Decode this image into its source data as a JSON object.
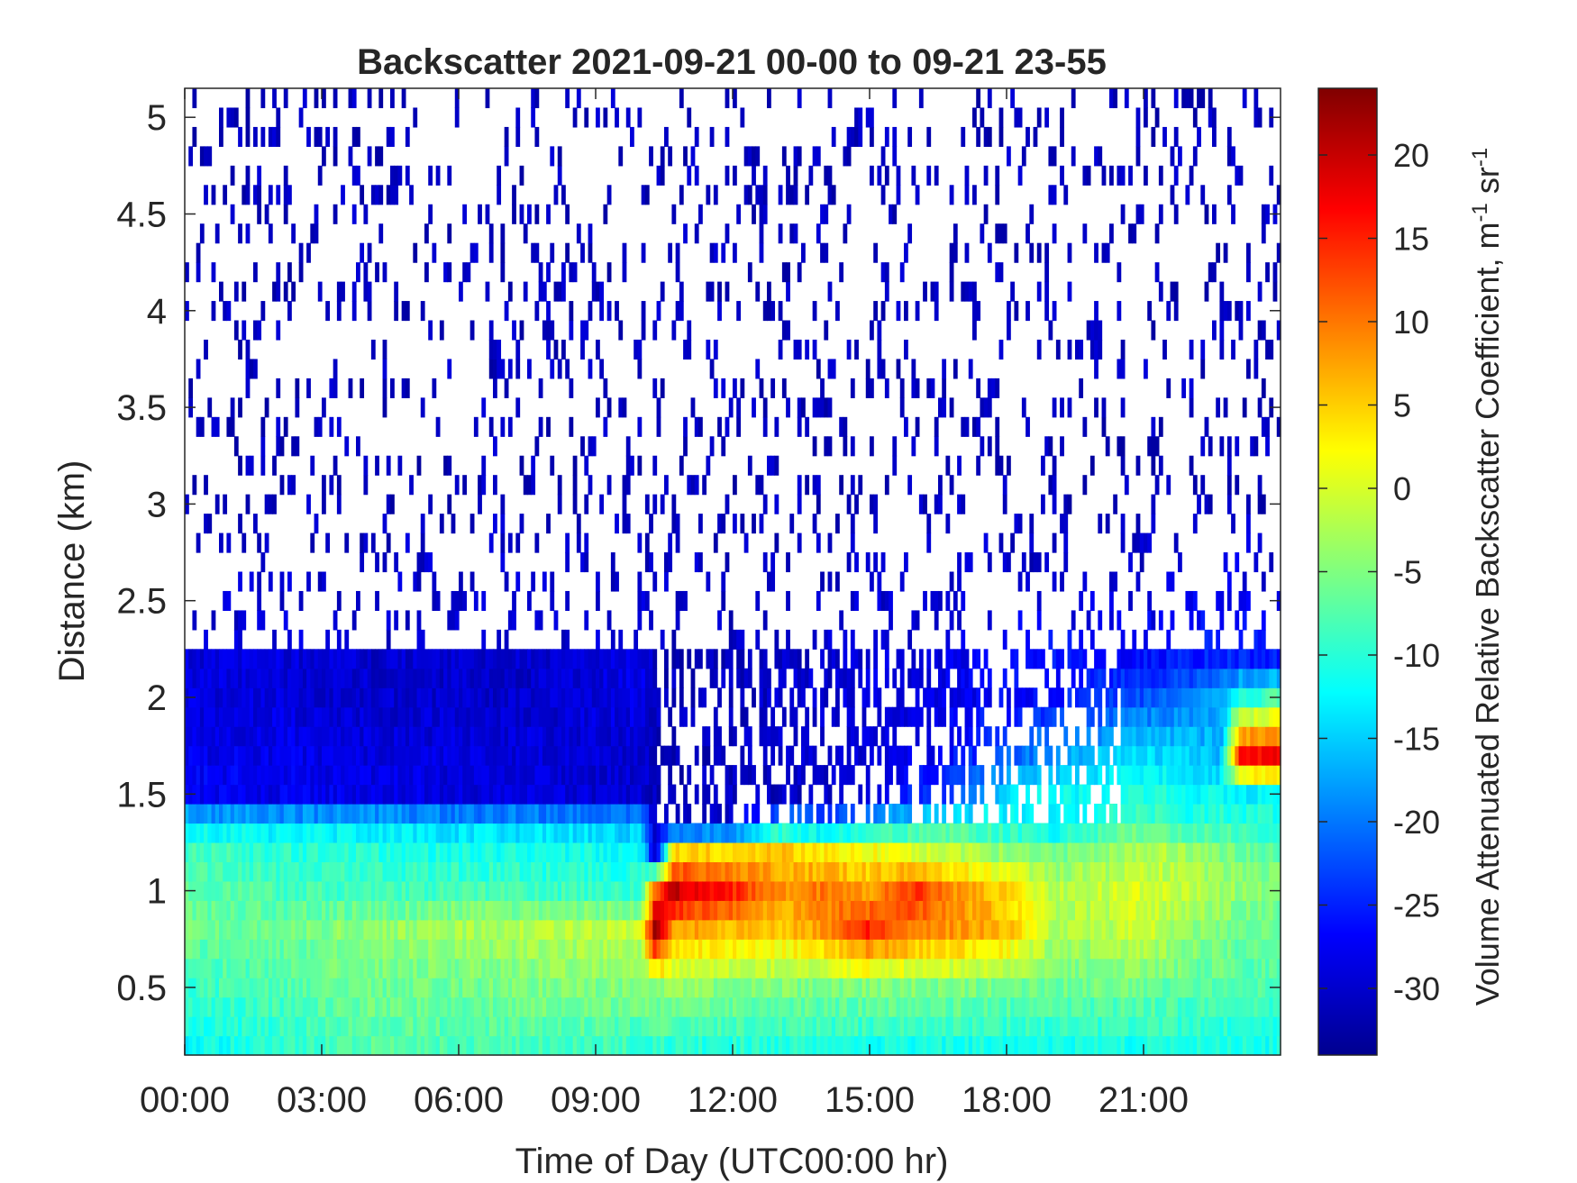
{
  "chart_data": {
    "type": "heatmap",
    "title": "Backscatter 2021-09-21 00-00 to 09-21 23-55",
    "xlabel": "Time of Day (UTC00:00 hr)",
    "ylabel": "Distance (km)",
    "colorbar_label": "Volume Attenuated Relative Backscatter Coefficient, m",
    "colorbar_unit_parts": [
      "-1",
      " sr",
      "-1"
    ],
    "colormap": "jet",
    "colormap_colors": [
      "#00008f",
      "#0000ff",
      "#00ffff",
      "#ffff00",
      "#ff0000",
      "#800000"
    ],
    "masked_color": "#ffffff",
    "xlim": [
      0,
      24
    ],
    "ylim": [
      0.15,
      5.15
    ],
    "clim": [
      -34,
      24
    ],
    "x_ticks": [
      0,
      3,
      6,
      9,
      12,
      15,
      18,
      21
    ],
    "x_tick_labels": [
      "00:00",
      "03:00",
      "06:00",
      "09:00",
      "12:00",
      "15:00",
      "18:00",
      "21:00"
    ],
    "y_ticks": [
      0.5,
      1,
      1.5,
      2,
      2.5,
      3,
      3.5,
      4,
      4.5,
      5
    ],
    "y_tick_labels": [
      "0.5",
      "1",
      "1.5",
      "2",
      "2.5",
      "3",
      "3.5",
      "4",
      "4.5",
      "5"
    ],
    "colorbar_ticks": [
      -30,
      -25,
      -20,
      -15,
      -10,
      -5,
      0,
      5,
      10,
      15,
      20
    ],
    "colorbar_tick_labels": [
      "-30",
      "-25",
      "-20",
      "-15",
      "-10",
      "-5",
      "0",
      "5",
      "10",
      "15",
      "20"
    ],
    "time_step_minutes": 5,
    "range_step_km": 0.1,
    "profile_times_hr": [
      0,
      2,
      4,
      6,
      8,
      10,
      10.3,
      10.7,
      12,
      13,
      14,
      15,
      16,
      17,
      18,
      19,
      20,
      21,
      22,
      22.7,
      23.1,
      24
    ],
    "profile_distances_km": [
      0.2,
      0.5,
      0.8,
      1.0,
      1.2,
      1.35,
      1.5,
      1.7,
      2.0,
      2.2,
      2.6,
      3.0,
      4.0,
      5.1
    ],
    "profile_values": [
      [
        -12,
        -10,
        -7,
        -8,
        -8,
        -9,
        -9,
        -10,
        -10,
        -10,
        -11,
        -11,
        -11,
        -11,
        -11,
        -11,
        -11,
        -11,
        -11,
        -11,
        -11,
        -11
      ],
      [
        -9,
        -8,
        -6,
        -6,
        -5,
        -5,
        -4,
        -4,
        -5,
        -5,
        -5,
        -5,
        -5,
        -5,
        -6,
        -6,
        -6,
        -6,
        -7,
        -7,
        -8,
        -8
      ],
      [
        -6,
        -6,
        -4,
        -3,
        -2,
        -1,
        22,
        8,
        6,
        5,
        8,
        15,
        10,
        8,
        6,
        -2,
        -3,
        0,
        -4,
        -5,
        -6,
        -7
      ],
      [
        -7,
        -8,
        -9,
        -8,
        -9,
        -9,
        12,
        20,
        15,
        8,
        10,
        8,
        14,
        8,
        5,
        -2,
        -1,
        0,
        -2,
        -3,
        -4,
        -5
      ],
      [
        -8,
        -10,
        -10,
        -11,
        -11,
        -12,
        -30,
        4,
        5,
        6,
        3,
        2,
        0,
        -2,
        -4,
        -6,
        -4,
        -2,
        -3,
        -5,
        -6,
        -7
      ],
      [
        -13,
        -14,
        -14,
        -15,
        -15,
        -16,
        -31,
        -31,
        -30,
        -18,
        -20,
        -15,
        -12,
        -10,
        -12,
        -14,
        -10,
        -8,
        -10,
        -9,
        -10,
        -10
      ],
      [
        -27,
        -28,
        -28,
        -29,
        -29,
        -30,
        -31,
        -32,
        -31,
        -31,
        -30,
        -29,
        -25,
        -22,
        -14,
        -12,
        -12,
        -10,
        -12,
        -12,
        -13,
        -12
      ],
      [
        -28,
        -28,
        -29,
        -29,
        -29,
        -30,
        -31,
        -31,
        -31,
        -30,
        -30,
        -29,
        -28,
        -26,
        -22,
        -18,
        -16,
        -14,
        -15,
        -16,
        16,
        18
      ],
      [
        -29,
        -29,
        -30,
        -30,
        -30,
        -28,
        -31,
        -31,
        -31,
        -30,
        -30,
        -29,
        -29,
        -28,
        -27,
        -26,
        -24,
        -22,
        -20,
        -18,
        -10,
        -8
      ],
      [
        -29,
        -29,
        -30,
        -30,
        -30,
        -28,
        -31,
        -31,
        -31,
        -30,
        -30,
        -29,
        -29,
        -28,
        -27,
        -26,
        -26,
        -26,
        -25,
        -25,
        -25,
        -25
      ],
      [
        -30,
        -30,
        -30,
        -30,
        -30,
        -30,
        -30,
        -30,
        -30,
        -30,
        -30,
        -30,
        -30,
        -30,
        -30,
        -30,
        -30,
        -30,
        -29,
        -29,
        -28,
        -30
      ],
      [
        -31,
        -31,
        -31,
        -31,
        -31,
        -31,
        -31,
        -31,
        -31,
        -31,
        -31,
        -31,
        -31,
        -31,
        -31,
        -31,
        -31,
        -31,
        -31,
        -31,
        -31,
        -31
      ],
      [
        -31,
        -31,
        -31,
        -31,
        -31,
        -31,
        -31,
        -31,
        -31,
        -31,
        -31,
        -31,
        -31,
        -31,
        -31,
        -31,
        -31,
        -31,
        -31,
        -31,
        -31,
        -31
      ],
      [
        -31,
        -31,
        -31,
        -31,
        -31,
        -31,
        -31,
        -31,
        -31,
        -31,
        -31,
        -31,
        -31,
        -31,
        -31,
        -31,
        -31,
        -31,
        -31,
        -31,
        -31,
        -31
      ]
    ],
    "clear_air_fraction_above_2_2km": 0.82,
    "grid": false,
    "legend": "none"
  }
}
